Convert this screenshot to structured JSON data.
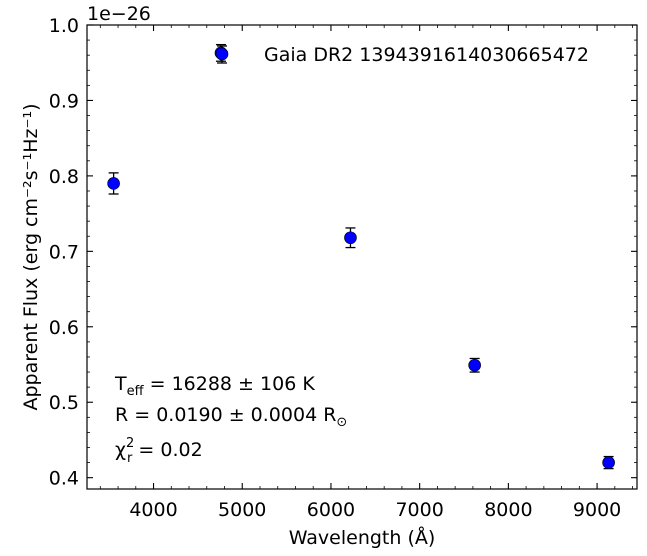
{
  "chart_data": {
    "type": "scatter",
    "xlabel": "Wavelength (Å)",
    "ylabel": "Apparent Flux (erg cm⁻²s⁻¹Hz⁻¹)",
    "y_offset_label": "1e−26",
    "xlim": [
      3250,
      9450
    ],
    "ylim": [
      0.385,
      1.0
    ],
    "x_ticks": [
      4000,
      5000,
      6000,
      7000,
      8000,
      9000
    ],
    "y_ticks": [
      0.4,
      0.5,
      0.6,
      0.7,
      0.8,
      0.9,
      1.0
    ],
    "x_tick_labels": [
      "4000",
      "5000",
      "6000",
      "7000",
      "8000",
      "9000"
    ],
    "y_tick_labels": [
      "0.4",
      "0.5",
      "0.6",
      "0.7",
      "0.8",
      "0.9",
      "1.0"
    ],
    "x_minor_step": 200,
    "y_minor_step": 0.02,
    "marker_color": "#0000ff",
    "errorbar_color": "#000000",
    "grid": false,
    "legend_position": "top-right",
    "series": [
      {
        "name": "Gaia DR2 1394391614030665472",
        "points": [
          {
            "x": 3550,
            "y": 0.79,
            "err": 0.014
          },
          {
            "x": 4760,
            "y": 0.963,
            "err": 0.011
          },
          {
            "x": 6220,
            "y": 0.718,
            "err": 0.013
          },
          {
            "x": 7620,
            "y": 0.549,
            "err": 0.009
          },
          {
            "x": 9130,
            "y": 0.42,
            "err": 0.008
          }
        ]
      }
    ],
    "annotations": {
      "teff": {
        "prefix": "T",
        "sub": "eff",
        "rest": " = 16288 ± 106 K"
      },
      "radius": {
        "text": "R = 0.0190 ± 0.0004 R",
        "sub": "⊙"
      },
      "chi2": {
        "prefix": "χ",
        "sup": "2",
        "sub": "r",
        "rest": " = 0.02"
      }
    }
  }
}
